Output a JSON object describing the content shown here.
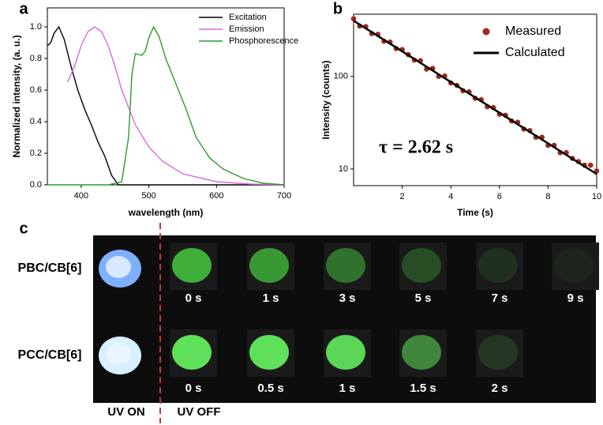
{
  "chart_data": [
    {
      "type": "line",
      "panel_label": "a",
      "xlabel": "wavelength (nm)",
      "ylabel": "Normalized intensity, (a. u.)",
      "xlim": [
        350,
        700
      ],
      "xticks": [
        400,
        500,
        600,
        700
      ],
      "ylim": [
        0,
        1.12
      ],
      "yticks": [
        {
          "value": 0,
          "label": "0.0"
        },
        0.2,
        0.4,
        0.6,
        0.8,
        {
          "value": 1,
          "label": "1.0"
        }
      ],
      "legend": "upper right",
      "series": [
        {
          "name": "Excitation",
          "color": "#000000",
          "kind": "line",
          "x": [
            350,
            355,
            360,
            367,
            375,
            385,
            395,
            405,
            415,
            425,
            435,
            445,
            455,
            470,
            700
          ],
          "values": [
            0.88,
            0.9,
            0.96,
            1.0,
            0.92,
            0.75,
            0.6,
            0.48,
            0.38,
            0.27,
            0.18,
            0.06,
            0.0,
            0.0,
            0.0
          ]
        },
        {
          "name": "Emission",
          "color": "#dd66dd",
          "kind": "line",
          "x": [
            380,
            390,
            400,
            410,
            420,
            430,
            440,
            450,
            460,
            480,
            500,
            520,
            550,
            600,
            650,
            700
          ],
          "values": [
            0.65,
            0.75,
            0.88,
            0.97,
            1.0,
            0.97,
            0.88,
            0.75,
            0.6,
            0.38,
            0.24,
            0.15,
            0.07,
            0.02,
            0.005,
            0.0
          ]
        },
        {
          "name": "Phosphorescence",
          "color": "#2e9a2e",
          "kind": "line",
          "x": [
            350,
            440,
            460,
            470,
            475,
            480,
            490,
            495,
            500,
            507,
            515,
            525,
            540,
            555,
            570,
            590,
            610,
            640,
            670,
            700
          ],
          "values": [
            0.0,
            0.0,
            0.02,
            0.3,
            0.7,
            0.83,
            0.82,
            0.85,
            0.93,
            1.0,
            0.94,
            0.8,
            0.64,
            0.48,
            0.3,
            0.17,
            0.1,
            0.04,
            0.01,
            0.0
          ]
        }
      ]
    },
    {
      "type": "scatter",
      "panel_label": "b",
      "xlabel": "Time (s)",
      "ylabel": "Intensity (counts)",
      "annotation": "τ = 2.62 s",
      "log_y": true,
      "xlim": [
        0,
        10
      ],
      "xticks": [
        2,
        4,
        6,
        8,
        10
      ],
      "ylim": [
        6.6,
        470
      ],
      "yticks": [
        10,
        100
      ],
      "legend": "upper right",
      "series": [
        {
          "name": "Measured",
          "color": "#a0281e",
          "kind": "points",
          "x": [
            0,
            0.25,
            0.5,
            0.75,
            1,
            1.25,
            1.5,
            1.75,
            2,
            2.25,
            2.5,
            2.75,
            3,
            3.25,
            3.5,
            3.75,
            4,
            4.25,
            4.5,
            4.75,
            5,
            5.25,
            5.5,
            5.75,
            6,
            6.25,
            6.5,
            6.75,
            7,
            7.25,
            7.5,
            7.75,
            8,
            8.25,
            8.5,
            8.75,
            9,
            9.25,
            9.5,
            9.75,
            10
          ],
          "values": [
            420,
            350,
            345,
            290,
            285,
            240,
            235,
            200,
            195,
            172,
            150,
            148,
            120,
            122,
            100,
            101,
            85,
            80,
            70,
            68,
            58,
            56,
            47,
            46,
            39,
            38,
            33,
            32,
            27,
            26,
            22,
            22,
            18,
            18,
            15,
            15,
            13,
            12,
            11,
            11,
            9.5
          ]
        },
        {
          "name": "Calculated",
          "color": "#000000",
          "kind": "line",
          "x": [
            0,
            10
          ],
          "values": [
            400,
            8.8
          ]
        }
      ]
    }
  ],
  "photo_panel": {
    "label": "c",
    "uv_on": "UV ON",
    "uv_off": "UV OFF",
    "rows": [
      {
        "name": "PBC/CB[6]",
        "times": [
          "0 s",
          "1 s",
          "3 s",
          "5 s",
          "7 s",
          "9 s"
        ]
      },
      {
        "name": "PCC/CB[6]",
        "times": [
          "0 s",
          "0.5 s",
          "1 s",
          "1.5 s",
          "2 s"
        ]
      }
    ]
  }
}
